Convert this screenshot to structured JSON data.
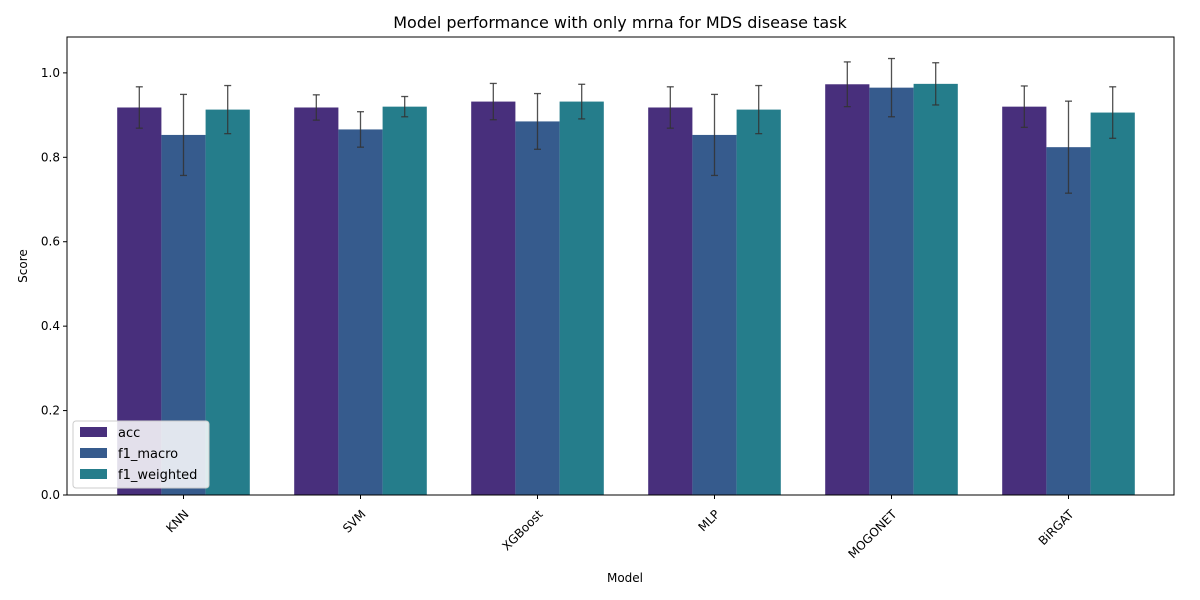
{
  "chart_data": {
    "type": "bar",
    "title": "Model performance with only mrna for MDS disease task",
    "xlabel": "Model",
    "ylabel": "Score",
    "ylim": [
      0,
      1.085
    ],
    "yticks": [
      "0.0",
      "0.2",
      "0.4",
      "0.6",
      "0.8",
      "1.0"
    ],
    "categories": [
      "KNN",
      "SVM",
      "XGBoost",
      "MLP",
      "MOGONET",
      "BiRGAT"
    ],
    "series": [
      {
        "name": "acc",
        "color": "#482f7c",
        "values": [
          0.918,
          0.918,
          0.932,
          0.918,
          0.973,
          0.92
        ],
        "errors": [
          0.049,
          0.03,
          0.043,
          0.049,
          0.053,
          0.049
        ]
      },
      {
        "name": "f1_macro",
        "color": "#365b8d",
        "values": [
          0.853,
          0.866,
          0.885,
          0.853,
          0.965,
          0.824
        ],
        "errors": [
          0.096,
          0.042,
          0.066,
          0.096,
          0.069,
          0.109
        ]
      },
      {
        "name": "f1_weighted",
        "color": "#257d8b",
        "values": [
          0.913,
          0.92,
          0.932,
          0.913,
          0.974,
          0.906
        ],
        "errors": [
          0.057,
          0.024,
          0.041,
          0.057,
          0.05,
          0.061
        ]
      }
    ],
    "grid": false,
    "legend": "lower-left"
  }
}
